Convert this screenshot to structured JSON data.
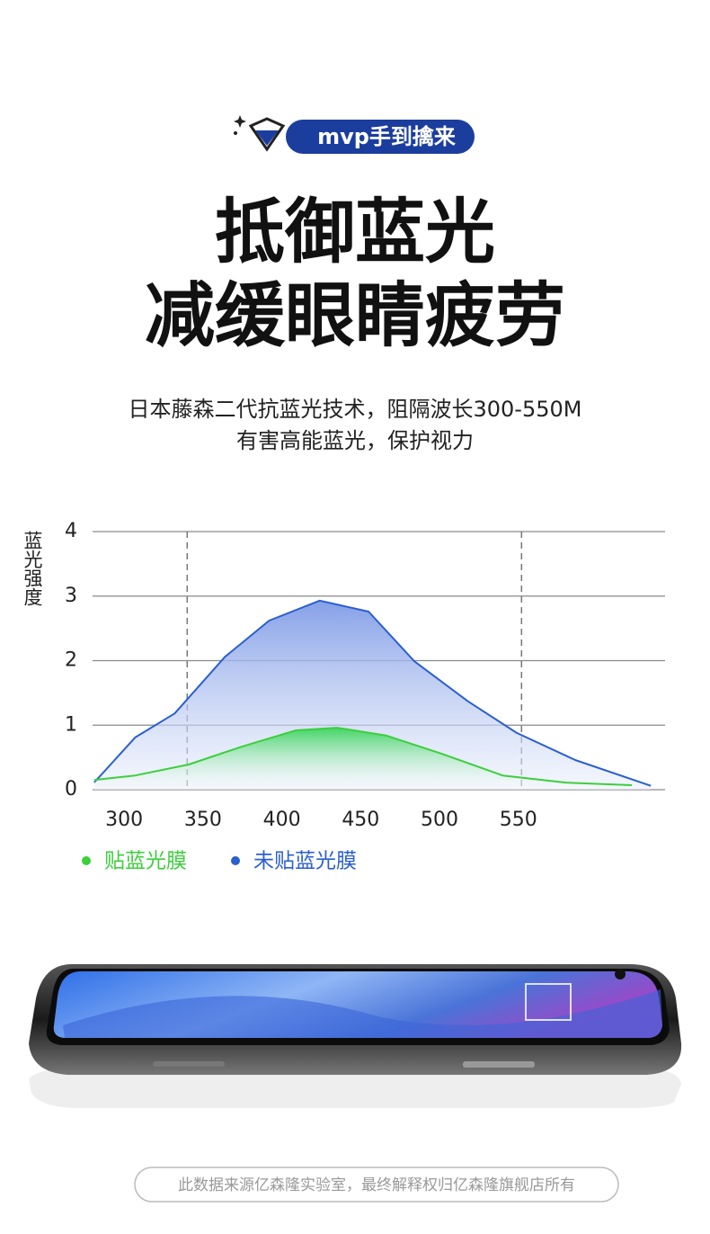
{
  "badge": "mvp手到擒来",
  "headline": [
    "抵御蓝光",
    "减缓眼睛疲劳"
  ],
  "subtitle": [
    "日本藤森二代抗蓝光技术，阻隔波长300-550M",
    "有害高能蓝光，保护视力"
  ],
  "chart_data": {
    "type": "line",
    "y_label": "蓝光强度",
    "xlim": [
      280,
      643
    ],
    "ylim": [
      0,
      4
    ],
    "xticks": [
      300,
      350,
      400,
      450,
      500,
      550
    ],
    "yticks": [
      0,
      1,
      2,
      3,
      4
    ],
    "grid": true,
    "reference_lines": [
      340,
      552
    ],
    "series": [
      {
        "name": "贴蓝光膜",
        "color": "#3ccf3c",
        "x": [
          281,
          307,
          341,
          375,
          409,
          435,
          466,
          501,
          540,
          580,
          622
        ],
        "values": [
          0.15,
          0.22,
          0.39,
          0.67,
          0.92,
          0.96,
          0.84,
          0.56,
          0.22,
          0.11,
          0.07
        ]
      },
      {
        "name": "未贴蓝光膜",
        "color": "#2a5fd0",
        "x": [
          281,
          307,
          332,
          364,
          392,
          424,
          455,
          484,
          518,
          549,
          586,
          634
        ],
        "values": [
          0.11,
          0.81,
          1.18,
          2.06,
          2.62,
          2.93,
          2.76,
          1.99,
          1.37,
          0.88,
          0.46,
          0.06
        ]
      }
    ]
  },
  "footer": "此数据来源亿森隆实验室，最终解释权归亿森隆旗舰店所有"
}
